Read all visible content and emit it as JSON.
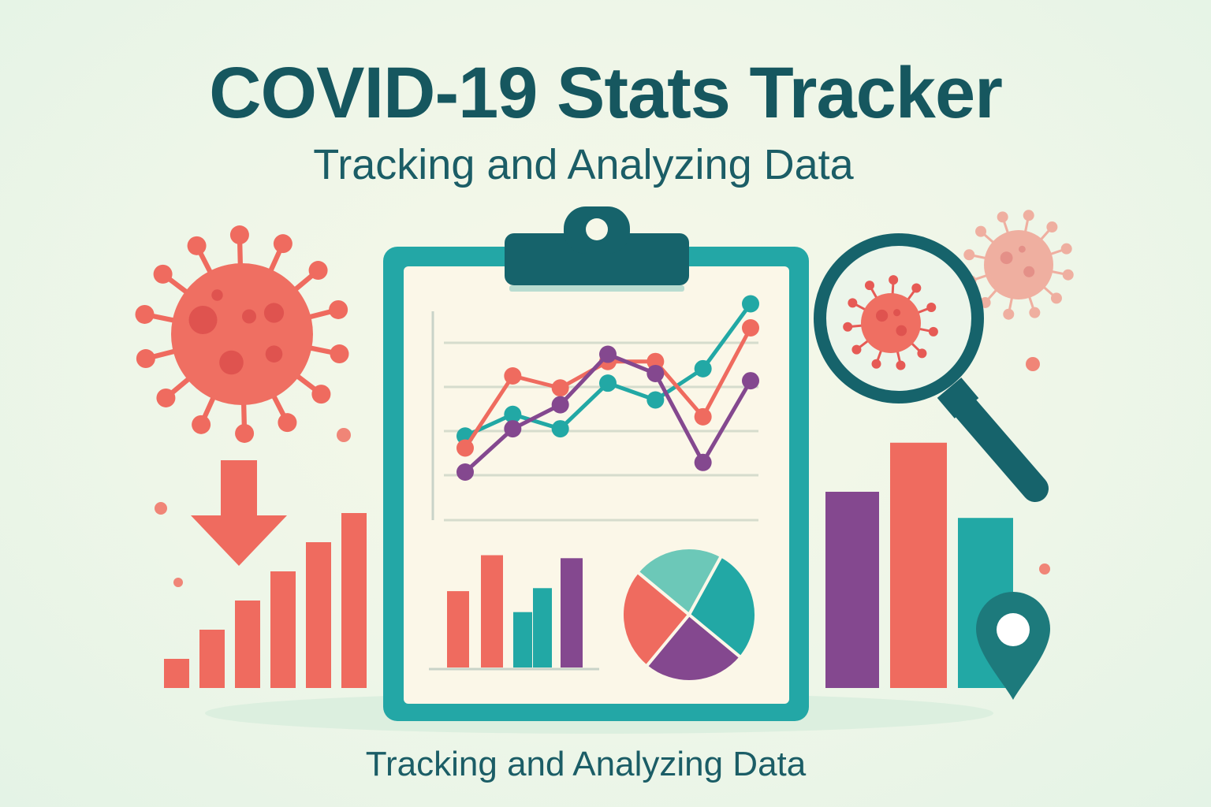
{
  "header": {
    "title": "COVID-19 Stats Tracker",
    "subtitle": "Tracking and Analyzing Data"
  },
  "footer": {
    "caption": "Tracking and Analyzing Data"
  },
  "icons": {
    "virus_large": "virus-icon",
    "virus_small": "virus-icon",
    "down_arrow": "down-arrow-icon",
    "clipboard": "clipboard-icon",
    "magnifier": "magnifying-glass-icon",
    "location_pin": "location-pin-icon",
    "pie": "pie-chart-icon"
  },
  "colors": {
    "coral": "#ef6b5f",
    "teal": "#22a8a5",
    "purple": "#84488f",
    "dark_teal": "#16636b",
    "title": "#16575f"
  },
  "chart_data": [
    {
      "type": "line",
      "x": [
        1,
        2,
        3,
        4,
        5,
        6,
        7
      ],
      "series": [
        {
          "color": "#22a8a5",
          "values": [
            3.5,
            4.4,
            3.8,
            5.7,
            5.0,
            6.3,
            9.0
          ]
        },
        {
          "color": "#ef6b5f",
          "values": [
            3.0,
            6.0,
            5.5,
            6.6,
            6.6,
            4.3,
            8.0
          ]
        },
        {
          "color": "#84488f",
          "values": [
            2.0,
            3.8,
            4.8,
            6.9,
            6.1,
            2.4,
            5.8
          ]
        }
      ]
    },
    {
      "type": "bar",
      "values": [
        5.1,
        7.5,
        3.7,
        5.3,
        7.3
      ],
      "colors": [
        "#ef6b5f",
        "#ef6b5f",
        "#22a8a5",
        "#22a8a5",
        "#84488f"
      ]
    },
    {
      "type": "pie",
      "values": [
        22,
        28,
        25,
        25
      ],
      "colors": [
        "#6cc8b8",
        "#22a8a5",
        "#84488f",
        "#ef6b5f"
      ]
    },
    {
      "type": "bar",
      "values": [
        1,
        2,
        3,
        4,
        5,
        6
      ],
      "colors": [
        "#ef6b5f"
      ]
    },
    {
      "type": "bar",
      "values": [
        6,
        7.5,
        5.2
      ],
      "colors": [
        "#84488f",
        "#ef6b5f",
        "#22a8a5"
      ]
    }
  ]
}
